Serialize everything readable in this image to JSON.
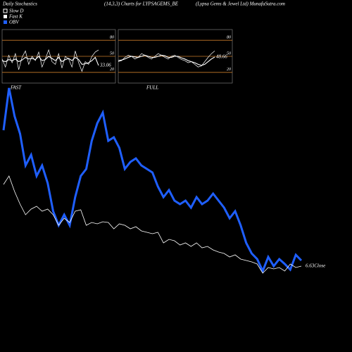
{
  "header": {
    "left": "Daily Stochastics",
    "center": "(14,3,3) Charts for LYPSAGEMS_BE",
    "right": "(Lypsa Gems & Jewel Ltd) MunafaSutra.com"
  },
  "chart_data": [
    {
      "type": "line",
      "title": "FAST",
      "ylim": [
        0,
        100
      ],
      "yticks": [
        20,
        50,
        80
      ],
      "grid": true,
      "grid_color": "#c87b2a",
      "series": [
        {
          "name": "Slow D",
          "color": "#ffffff",
          "values": [
            42,
            40,
            44,
            42,
            45,
            40,
            43,
            48,
            45,
            46,
            44,
            50,
            42,
            44,
            50,
            46,
            42,
            48,
            40,
            44,
            46,
            42,
            48,
            44,
            35,
            36,
            38,
            42,
            48,
            33.06
          ]
        },
        {
          "name": "Fast K",
          "color": "#ffffff",
          "values": [
            45,
            30,
            52,
            38,
            55,
            25,
            48,
            60,
            35,
            50,
            42,
            58,
            30,
            45,
            62,
            40,
            35,
            55,
            28,
            50,
            45,
            30,
            60,
            38,
            22,
            40,
            35,
            50,
            58,
            62
          ]
        }
      ]
    },
    {
      "type": "line",
      "title": "FULL",
      "ylim": [
        0,
        100
      ],
      "yticks": [
        20,
        50,
        80
      ],
      "grid": true,
      "grid_color": "#c87b2a",
      "series": [
        {
          "name": "Slow D",
          "color": "#ffffff",
          "values": [
            42,
            43,
            45,
            48,
            50,
            49,
            48,
            50,
            52,
            50,
            48,
            48,
            50,
            52,
            51,
            48,
            48,
            50,
            50,
            47,
            45,
            42,
            40,
            38,
            35,
            33,
            35,
            40,
            45,
            48.66
          ]
        },
        {
          "name": "Fast K",
          "color": "#ffffff",
          "values": [
            40,
            42,
            48,
            52,
            50,
            45,
            48,
            55,
            52,
            48,
            45,
            50,
            55,
            52,
            48,
            45,
            50,
            52,
            48,
            44,
            42,
            38,
            40,
            35,
            30,
            32,
            40,
            48,
            55,
            60
          ]
        }
      ]
    },
    {
      "type": "line",
      "ylim": [
        4.39,
        11.79
      ],
      "y2lim": [
        0,
        370
      ],
      "series": [
        {
          "name": "OBV",
          "color": "#1f5fff",
          "axis": "y2",
          "values": [
            305,
            365,
            325,
            300,
            255,
            270,
            240,
            255,
            230,
            190,
            170,
            185,
            170,
            210,
            240,
            250,
            290,
            315,
            330,
            290,
            295,
            280,
            250,
            260,
            265,
            255,
            250,
            245,
            225,
            210,
            220,
            205,
            200,
            205,
            195,
            210,
            200,
            205,
            215,
            205,
            195,
            180,
            190,
            170,
            145,
            130,
            122,
            105,
            125,
            112,
            122,
            115,
            107,
            128,
            120
          ]
        },
        {
          "name": "Close",
          "color": "#ffffff",
          "values": [
            8.95,
            9.19,
            8.75,
            8.39,
            8.09,
            8.25,
            8.33,
            8.19,
            8.25,
            8.09,
            7.79,
            7.99,
            7.87,
            8.19,
            8.23,
            7.79,
            7.87,
            7.83,
            7.89,
            7.87,
            7.69,
            7.83,
            7.79,
            7.69,
            7.75,
            7.63,
            7.59,
            7.55,
            7.59,
            7.29,
            7.39,
            7.35,
            7.23,
            7.29,
            7.19,
            7.29,
            7.15,
            7.19,
            7.09,
            7.03,
            6.99,
            6.89,
            6.95,
            6.83,
            6.79,
            6.75,
            6.69,
            6.43,
            6.59,
            6.55,
            6.59,
            6.49,
            6.69,
            6.59,
            6.63
          ]
        }
      ]
    }
  ]
}
